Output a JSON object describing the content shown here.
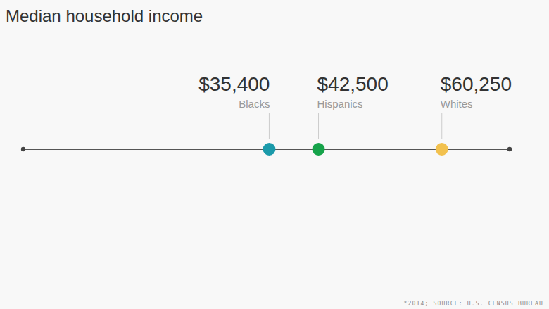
{
  "chart_data": {
    "type": "dot",
    "title": "Median household income",
    "categories": [
      "Blacks",
      "Hispanics",
      "Whites"
    ],
    "values": [
      35400,
      42500,
      60250
    ],
    "value_labels": [
      "$35,400",
      "$42,500",
      "$60,250"
    ],
    "colors": [
      "#1b9aaa",
      "#16a34a",
      "#f2c14e"
    ],
    "xlim": [
      0,
      70000
    ],
    "tick_labels": false,
    "data_labels": true,
    "source": "*2014; SOURCE: U.S. CENSUS BUREAU"
  }
}
